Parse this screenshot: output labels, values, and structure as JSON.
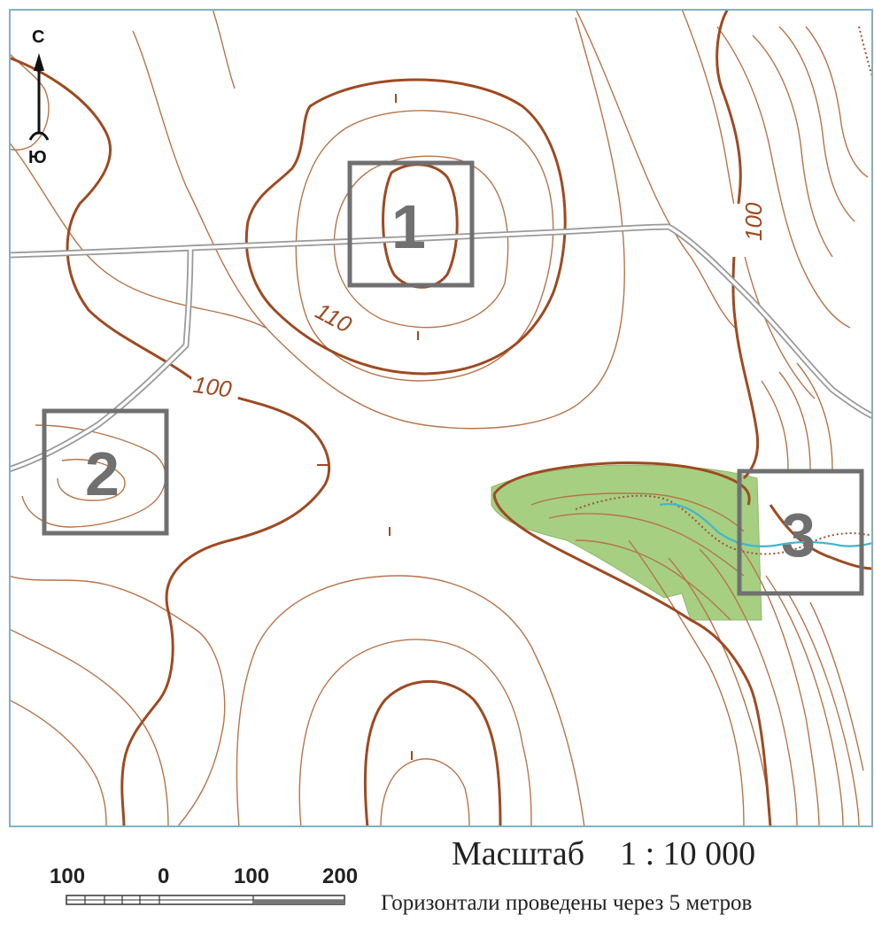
{
  "map": {
    "compass": {
      "north": "С",
      "south": "Ю"
    },
    "areas": [
      {
        "label": "1"
      },
      {
        "label": "2"
      },
      {
        "label": "3"
      }
    ],
    "contour_labels": [
      "110",
      "100",
      "100"
    ],
    "colors": {
      "contour": "#b5754a",
      "index_contour": "#9e4a22",
      "forest": "#a6cf82",
      "stream": "#3fb8c8",
      "road": "#9a9a9a",
      "frame": "#7fb2c4"
    }
  },
  "scale_bar": {
    "ticks": [
      "100",
      "0",
      "100",
      "200"
    ]
  },
  "scale_label": "Масштаб",
  "scale_value": "1 : 10 000",
  "contour_note": "Горизонтали проведены через 5 метров"
}
